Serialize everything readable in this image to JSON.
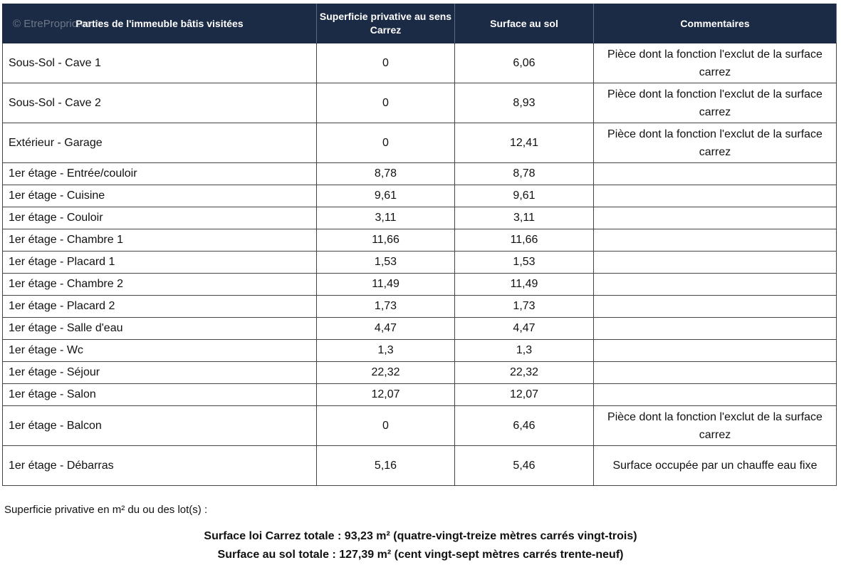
{
  "watermark": "© EtreProprio.com",
  "headers": [
    "Parties de l'immeuble bâtis visitées",
    "Superficie privative au sens Carrez",
    "Surface au sol",
    "Commentaires"
  ],
  "header_color": "#1c2b45",
  "rows": [
    {
      "part": "Sous-Sol - Cave 1",
      "carrez": "0",
      "sol": "6,06",
      "comment": "Pièce dont la fonction l'exclut de la surface carrez"
    },
    {
      "part": "Sous-Sol - Cave 2",
      "carrez": "0",
      "sol": "8,93",
      "comment": "Pièce dont la fonction l'exclut de la surface carrez"
    },
    {
      "part": "Extérieur - Garage",
      "carrez": "0",
      "sol": "12,41",
      "comment": "Pièce dont la fonction l'exclut de la surface carrez"
    },
    {
      "part": "1er étage - Entrée/couloir",
      "carrez": "8,78",
      "sol": "8,78",
      "comment": ""
    },
    {
      "part": "1er étage - Cuisine",
      "carrez": "9,61",
      "sol": "9,61",
      "comment": ""
    },
    {
      "part": "1er étage - Couloir",
      "carrez": "3,11",
      "sol": "3,11",
      "comment": ""
    },
    {
      "part": "1er étage - Chambre 1",
      "carrez": "11,66",
      "sol": "11,66",
      "comment": ""
    },
    {
      "part": "1er étage - Placard 1",
      "carrez": "1,53",
      "sol": "1,53",
      "comment": ""
    },
    {
      "part": "1er étage - Chambre 2",
      "carrez": "11,49",
      "sol": "11,49",
      "comment": ""
    },
    {
      "part": "1er étage - Placard 2",
      "carrez": "1,73",
      "sol": "1,73",
      "comment": ""
    },
    {
      "part": "1er étage - Salle d'eau",
      "carrez": "4,47",
      "sol": "4,47",
      "comment": ""
    },
    {
      "part": "1er étage - Wc",
      "carrez": "1,3",
      "sol": "1,3",
      "comment": ""
    },
    {
      "part": "1er étage - Séjour",
      "carrez": "22,32",
      "sol": "22,32",
      "comment": ""
    },
    {
      "part": "1er étage - Salon",
      "carrez": "12,07",
      "sol": "12,07",
      "comment": ""
    },
    {
      "part": "1er étage - Balcon",
      "carrez": "0",
      "sol": "6,46",
      "comment": "Pièce dont la fonction l'exclut de la surface carrez"
    },
    {
      "part": "1er étage - Débarras",
      "carrez": "5,16",
      "sol": "5,46",
      "comment": "Surface occupée par un chauffe eau fixe"
    }
  ],
  "note": "Superficie privative en m² du ou des lot(s) :",
  "total_carrez": "Surface loi Carrez totale : 93,23 m² (quatre-vingt-treize mètres carrés vingt-trois)",
  "total_sol": "Surface au sol totale : 127,39 m² (cent vingt-sept mètres carrés trente-neuf)"
}
